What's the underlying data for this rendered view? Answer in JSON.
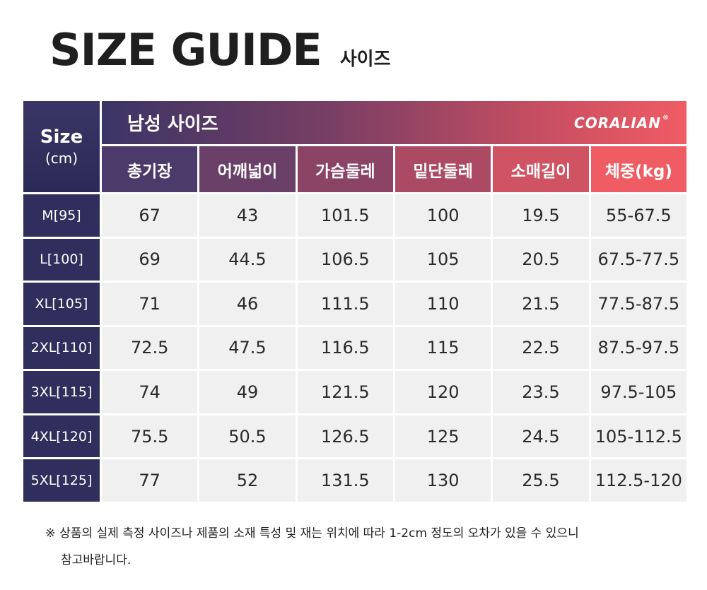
{
  "header": {
    "title": "SIZE GUIDE",
    "subtitle": "사이즈"
  },
  "table": {
    "size_label": "Size",
    "size_unit": "(cm)",
    "banner_title": "남성 사이즈",
    "brand": "CORALIAN",
    "brand_mark": "®",
    "columns": [
      "총기장",
      "어깨넓이",
      "가슴둘레",
      "밑단둘레",
      "소매길이",
      "체중(kg)"
    ],
    "rows": [
      {
        "size": "M[95]",
        "values": [
          "67",
          "43",
          "101.5",
          "100",
          "19.5",
          "55-67.5"
        ]
      },
      {
        "size": "L[100]",
        "values": [
          "69",
          "44.5",
          "106.5",
          "105",
          "20.5",
          "67.5-77.5"
        ]
      },
      {
        "size": "XL[105]",
        "values": [
          "71",
          "46",
          "111.5",
          "110",
          "21.5",
          "77.5-87.5"
        ]
      },
      {
        "size": "2XL[110]",
        "values": [
          "72.5",
          "47.5",
          "116.5",
          "115",
          "22.5",
          "87.5-97.5"
        ]
      },
      {
        "size": "3XL[115]",
        "values": [
          "74",
          "49",
          "121.5",
          "120",
          "23.5",
          "97.5-105"
        ]
      },
      {
        "size": "4XL[120]",
        "values": [
          "75.5",
          "50.5",
          "126.5",
          "125",
          "24.5",
          "105-112.5"
        ]
      },
      {
        "size": "5XL[125]",
        "values": [
          "77",
          "52",
          "131.5",
          "130",
          "25.5",
          "112.5-120"
        ]
      }
    ]
  },
  "note": {
    "mark": "※",
    "line1": "상품의 실제 측정 사이즈나 제품의 소재 특성 및 재는 위치에 따라 1-2cm 정도의 오차가 있을 수 있으니",
    "line2": "참고바랍니다."
  },
  "colors": {
    "navy": "#2f2e5c",
    "coral": "#f05c64",
    "cell_bg": "#f0f0f0"
  }
}
